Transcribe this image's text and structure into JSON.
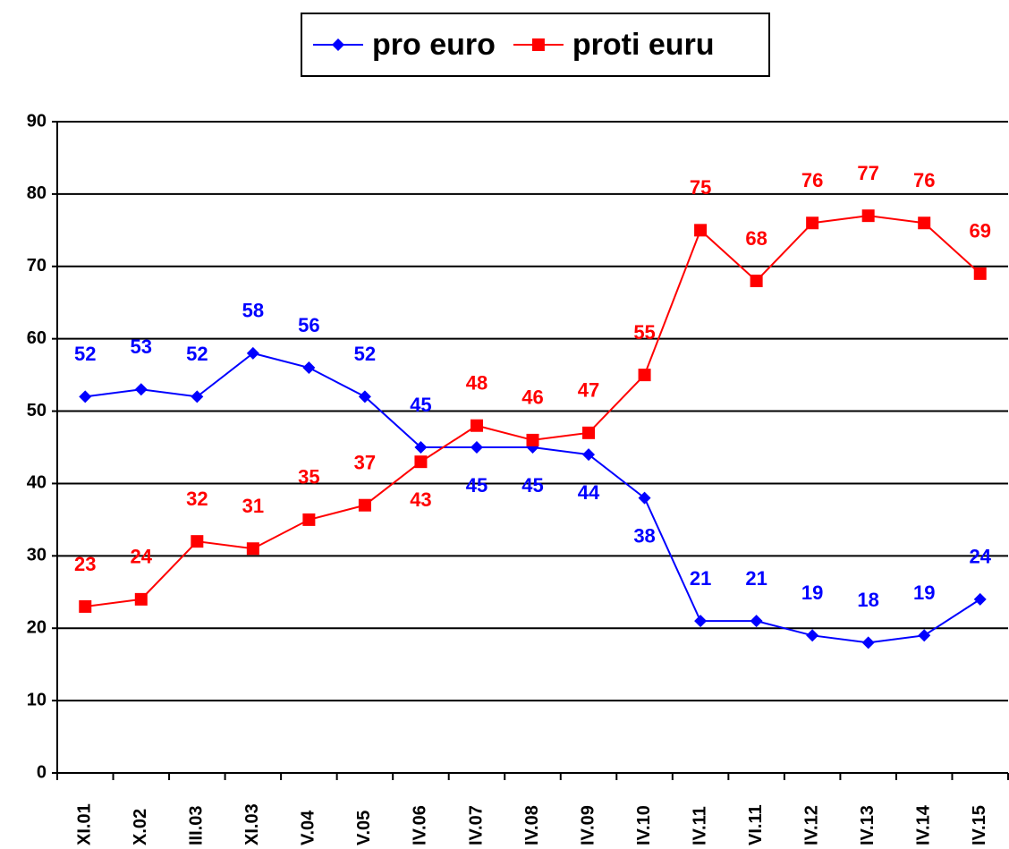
{
  "chart_data": {
    "type": "line",
    "categories": [
      "XI.01",
      "X.02",
      "III.03",
      "XI.03",
      "V.04",
      "V.05",
      "IV.06",
      "IV.07",
      "IV.08",
      "IV.09",
      "IV.10",
      "IV.11",
      "VI.11",
      "IV.12",
      "IV.13",
      "IV.14",
      "IV.15"
    ],
    "series": [
      {
        "name": "pro euro",
        "color": "#0000ff",
        "marker": "diamond",
        "values": [
          52,
          53,
          52,
          58,
          56,
          52,
          45,
          45,
          45,
          44,
          38,
          21,
          21,
          19,
          18,
          19,
          24
        ]
      },
      {
        "name": "proti euru",
        "color": "#ff0000",
        "marker": "square",
        "values": [
          23,
          24,
          32,
          31,
          35,
          37,
          43,
          48,
          46,
          47,
          55,
          75,
          68,
          76,
          77,
          76,
          69
        ]
      }
    ],
    "ylim": [
      0,
      90
    ],
    "yticks": [
      0,
      10,
      20,
      30,
      40,
      50,
      60,
      70,
      80,
      90
    ],
    "grid": true,
    "legend": "top"
  }
}
